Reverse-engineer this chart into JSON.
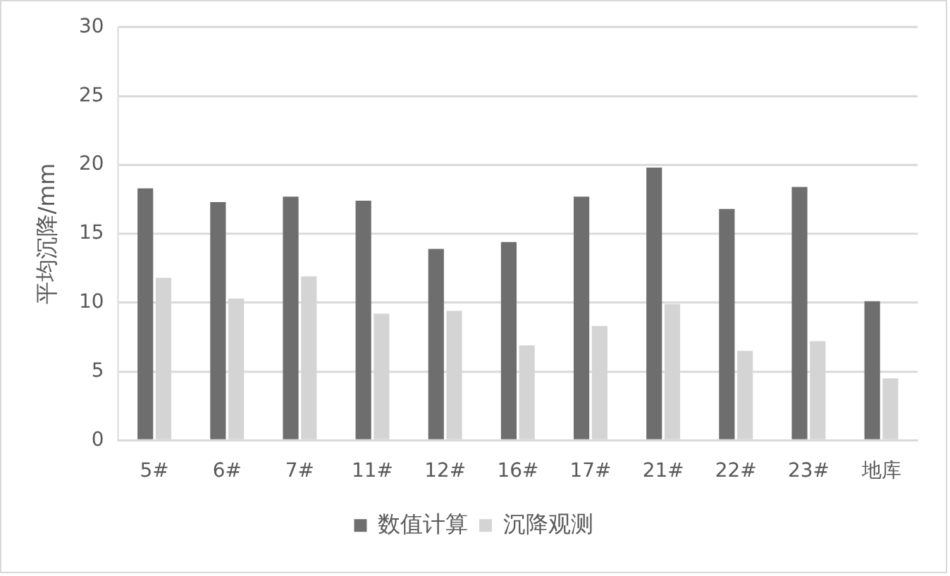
{
  "chart_data": {
    "type": "bar",
    "ylabel": "平均沉降/mm",
    "categories": [
      "5#",
      "6#",
      "7#",
      "11#",
      "12#",
      "16#",
      "17#",
      "21#",
      "22#",
      "23#",
      "地库"
    ],
    "series": [
      {
        "name": "数值计算",
        "color": "#6e6e6e",
        "values": [
          18.3,
          17.3,
          17.7,
          17.4,
          13.9,
          14.4,
          17.7,
          19.8,
          16.8,
          18.4,
          10.1
        ]
      },
      {
        "name": "沉降观测",
        "color": "#d4d4d4",
        "values": [
          11.8,
          10.3,
          11.9,
          9.2,
          9.4,
          6.9,
          8.3,
          9.9,
          6.5,
          7.2,
          4.5
        ]
      }
    ],
    "ylim": [
      0,
      30
    ],
    "yticks": [
      0,
      5,
      10,
      15,
      20,
      25,
      30
    ],
    "grid": "y",
    "legend": "bottom"
  }
}
